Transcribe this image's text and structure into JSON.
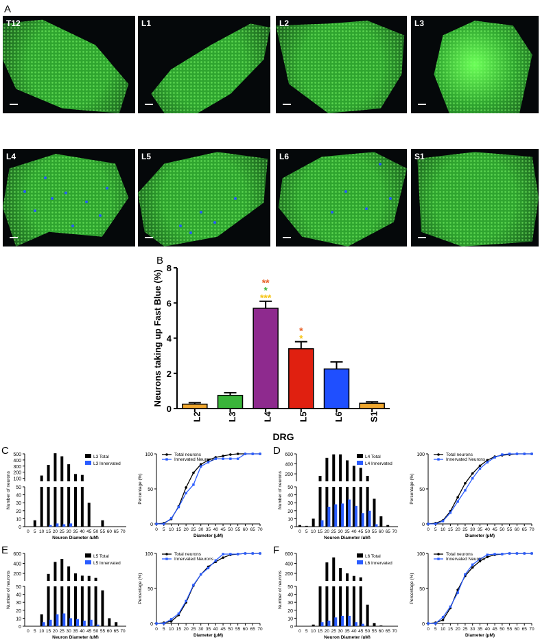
{
  "panel_letters": {
    "a": "A",
    "b": "B",
    "c": "C",
    "d": "D",
    "e": "E",
    "f": "F"
  },
  "micrographs": [
    {
      "label": "T12"
    },
    {
      "label": "L1"
    },
    {
      "label": "L2"
    },
    {
      "label": "L3"
    },
    {
      "label": "L4"
    },
    {
      "label": "L5"
    },
    {
      "label": "L6"
    },
    {
      "label": "S1"
    }
  ],
  "colors": {
    "tissue": "#2fa52f",
    "tissue_bright": "#6cff58",
    "fast_blue": "#2a5cff",
    "total_bar": "#000000",
    "innervated_bar": "#2a5cff"
  },
  "chart_data": [
    {
      "type": "bar",
      "id": "B",
      "categories": [
        "L2",
        "L3",
        "L4",
        "L5",
        "L6",
        "S1"
      ],
      "values": [
        0.25,
        0.75,
        5.7,
        3.4,
        2.25,
        0.3
      ],
      "errors": [
        0.08,
        0.15,
        0.4,
        0.4,
        0.4,
        0.08
      ],
      "colors": [
        "#f0a830",
        "#3ab53a",
        "#8e2a8e",
        "#e02010",
        "#1f4fff",
        "#f0a830"
      ],
      "ylabel": "Neurons taking up Fast Blue (%)",
      "xlabel": "DRG",
      "ylim": [
        0,
        8
      ],
      "yticks": [
        0,
        2,
        4,
        6,
        8
      ],
      "annotations": [
        {
          "category": "L4",
          "stars": [
            {
              "text": "**",
              "color": "#e8622a"
            },
            {
              "text": "*",
              "color": "#3ab53a"
            },
            {
              "text": "***",
              "color": "#f5c518"
            }
          ]
        },
        {
          "category": "L5",
          "stars": [
            {
              "text": "*",
              "color": "#e8622a"
            },
            {
              "text": "*",
              "color": "#f5c518"
            }
          ]
        }
      ]
    },
    {
      "type": "bar",
      "id": "C-hist",
      "x": [
        0,
        5,
        10,
        15,
        20,
        25,
        30,
        35,
        40,
        45,
        50,
        55,
        60,
        65,
        70
      ],
      "series": [
        {
          "name": "L3 Total",
          "values": [
            0,
            8,
            145,
            320,
            510,
            460,
            330,
            170,
            155,
            30,
            0,
            8,
            0,
            0,
            0
          ]
        },
        {
          "name": "L3 Innervated",
          "values": [
            0,
            0,
            0,
            2,
            4,
            3,
            4,
            0,
            0,
            0,
            0,
            0,
            0,
            0,
            0
          ]
        }
      ],
      "xlabel": "Neuron Diameter (µM)",
      "ylabel": "Number of neurons",
      "yticks_upper": [
        500,
        400,
        300,
        200,
        100
      ],
      "yticks_lower": [
        50,
        40,
        30,
        20,
        10,
        0
      ]
    },
    {
      "type": "line",
      "id": "C-cum",
      "x": [
        0,
        5,
        10,
        15,
        20,
        25,
        30,
        35,
        40,
        45,
        50,
        55,
        60,
        65,
        70
      ],
      "series": [
        {
          "name": "Total neurons",
          "values": [
            0,
            1,
            7,
            25,
            52,
            73,
            85,
            91,
            95,
            97,
            99,
            100,
            100,
            100,
            100
          ]
        },
        {
          "name": "Innervated Neurons",
          "values": [
            0,
            0,
            8,
            24,
            44,
            56,
            82,
            88,
            93,
            93,
            93,
            93,
            100,
            100,
            100
          ]
        }
      ],
      "xlabel": "Diameter (µM)",
      "ylabel": "Percentage (%)",
      "ylim": [
        0,
        100
      ],
      "yticks": [
        0,
        50,
        100
      ]
    },
    {
      "type": "bar",
      "id": "D-hist",
      "x": [
        0,
        5,
        10,
        15,
        20,
        25,
        30,
        35,
        40,
        45,
        50,
        55,
        60,
        65,
        70
      ],
      "series": [
        {
          "name": "L4 Total",
          "values": [
            2,
            1,
            10,
            160,
            520,
            590,
            590,
            470,
            360,
            320,
            160,
            35,
            13,
            2,
            0
          ]
        },
        {
          "name": "L4 Innervated",
          "values": [
            0,
            0,
            0,
            8,
            25,
            28,
            29,
            34,
            26,
            17,
            20,
            3,
            0,
            0,
            0
          ]
        }
      ],
      "xlabel": "Neuron Diameter (µM)",
      "ylabel": "Number of neurons",
      "yticks_upper": [
        600,
        400,
        200
      ],
      "yticks_lower": [
        50,
        40,
        30,
        20,
        10,
        0
      ]
    },
    {
      "type": "line",
      "id": "D-cum",
      "x": [
        0,
        5,
        10,
        15,
        20,
        25,
        30,
        35,
        40,
        45,
        50,
        55,
        60,
        65,
        70
      ],
      "series": [
        {
          "name": "Total neurons",
          "values": [
            0,
            1,
            5,
            18,
            38,
            58,
            72,
            83,
            91,
            96,
            98,
            99,
            100,
            100,
            100
          ]
        },
        {
          "name": "Innervated Neurons",
          "values": [
            0,
            0,
            4,
            16,
            32,
            48,
            65,
            79,
            88,
            95,
            99,
            100,
            100,
            100,
            100
          ]
        }
      ],
      "xlabel": "Diameter (µM)",
      "ylabel": "Percentage (%)",
      "ylim": [
        0,
        100
      ],
      "yticks": [
        0,
        50,
        100
      ]
    },
    {
      "type": "bar",
      "id": "E-hist",
      "x": [
        0,
        5,
        10,
        15,
        20,
        25,
        30,
        35,
        40,
        45,
        50,
        55,
        60,
        65,
        70
      ],
      "series": [
        {
          "name": "L5 Total",
          "values": [
            0,
            0,
            15,
            190,
            430,
            490,
            340,
            200,
            155,
            150,
            110,
            45,
            10,
            5,
            0
          ]
        },
        {
          "name": "L5 Innervated",
          "values": [
            0,
            0,
            5,
            8,
            15,
            16,
            10,
            9,
            7,
            8,
            2,
            0,
            0,
            0,
            0
          ]
        }
      ],
      "xlabel": "Neuron Diameter (µM)",
      "ylabel": "Number of neurons",
      "yticks_upper": [
        600,
        400,
        200
      ],
      "yticks_lower": [
        50,
        40,
        30,
        20,
        10,
        0
      ]
    },
    {
      "type": "line",
      "id": "E-cum",
      "x": [
        0,
        5,
        10,
        15,
        20,
        25,
        30,
        35,
        40,
        45,
        50,
        55,
        60,
        65,
        70
      ],
      "series": [
        {
          "name": "Total neurons",
          "values": [
            0,
            1,
            3,
            12,
            30,
            54,
            70,
            81,
            88,
            94,
            98,
            99,
            100,
            100,
            100
          ]
        },
        {
          "name": "Innervated Neurons",
          "values": [
            0,
            0,
            6,
            14,
            32,
            55,
            70,
            79,
            90,
            99,
            99,
            99,
            100,
            100,
            100
          ]
        }
      ],
      "xlabel": "Diameter (µM)",
      "ylabel": "Percentage (%)",
      "ylim": [
        0,
        100
      ],
      "yticks": [
        0,
        50,
        100
      ]
    },
    {
      "type": "bar",
      "id": "F-hist",
      "x": [
        0,
        5,
        10,
        15,
        20,
        25,
        30,
        35,
        40,
        45,
        50,
        55,
        60,
        65,
        70
      ],
      "series": [
        {
          "name": "L6 Total",
          "values": [
            0,
            0,
            2,
            50,
            420,
            520,
            310,
            200,
            150,
            120,
            27,
            4,
            1,
            0,
            0
          ]
        },
        {
          "name": "L6 Innervated",
          "values": [
            0,
            0,
            0,
            5,
            7,
            11,
            13,
            13,
            5,
            3,
            0,
            0,
            0,
            0,
            0
          ]
        }
      ],
      "xlabel": "Neuron Diameter (µM)",
      "ylabel": "Number of neurons",
      "yticks_upper": [
        600,
        400,
        200
      ],
      "yticks_lower": [
        50,
        40,
        30,
        20,
        10,
        0
      ]
    },
    {
      "type": "line",
      "id": "F-cum",
      "x": [
        0,
        5,
        10,
        15,
        20,
        25,
        30,
        35,
        40,
        45,
        50,
        55,
        60,
        65,
        70
      ],
      "series": [
        {
          "name": "Total neurons",
          "values": [
            0,
            1,
            5,
            22,
            48,
            68,
            80,
            89,
            95,
            98,
            99,
            100,
            100,
            100,
            100
          ]
        },
        {
          "name": "Innervated Neurons",
          "values": [
            0,
            0,
            9,
            24,
            44,
            70,
            84,
            92,
            98,
            99,
            99,
            100,
            100,
            100,
            100
          ]
        }
      ],
      "xlabel": "Diameter (µM)",
      "ylabel": "Percentage (%)",
      "ylim": [
        0,
        100
      ],
      "yticks": [
        0,
        50,
        100
      ]
    }
  ]
}
